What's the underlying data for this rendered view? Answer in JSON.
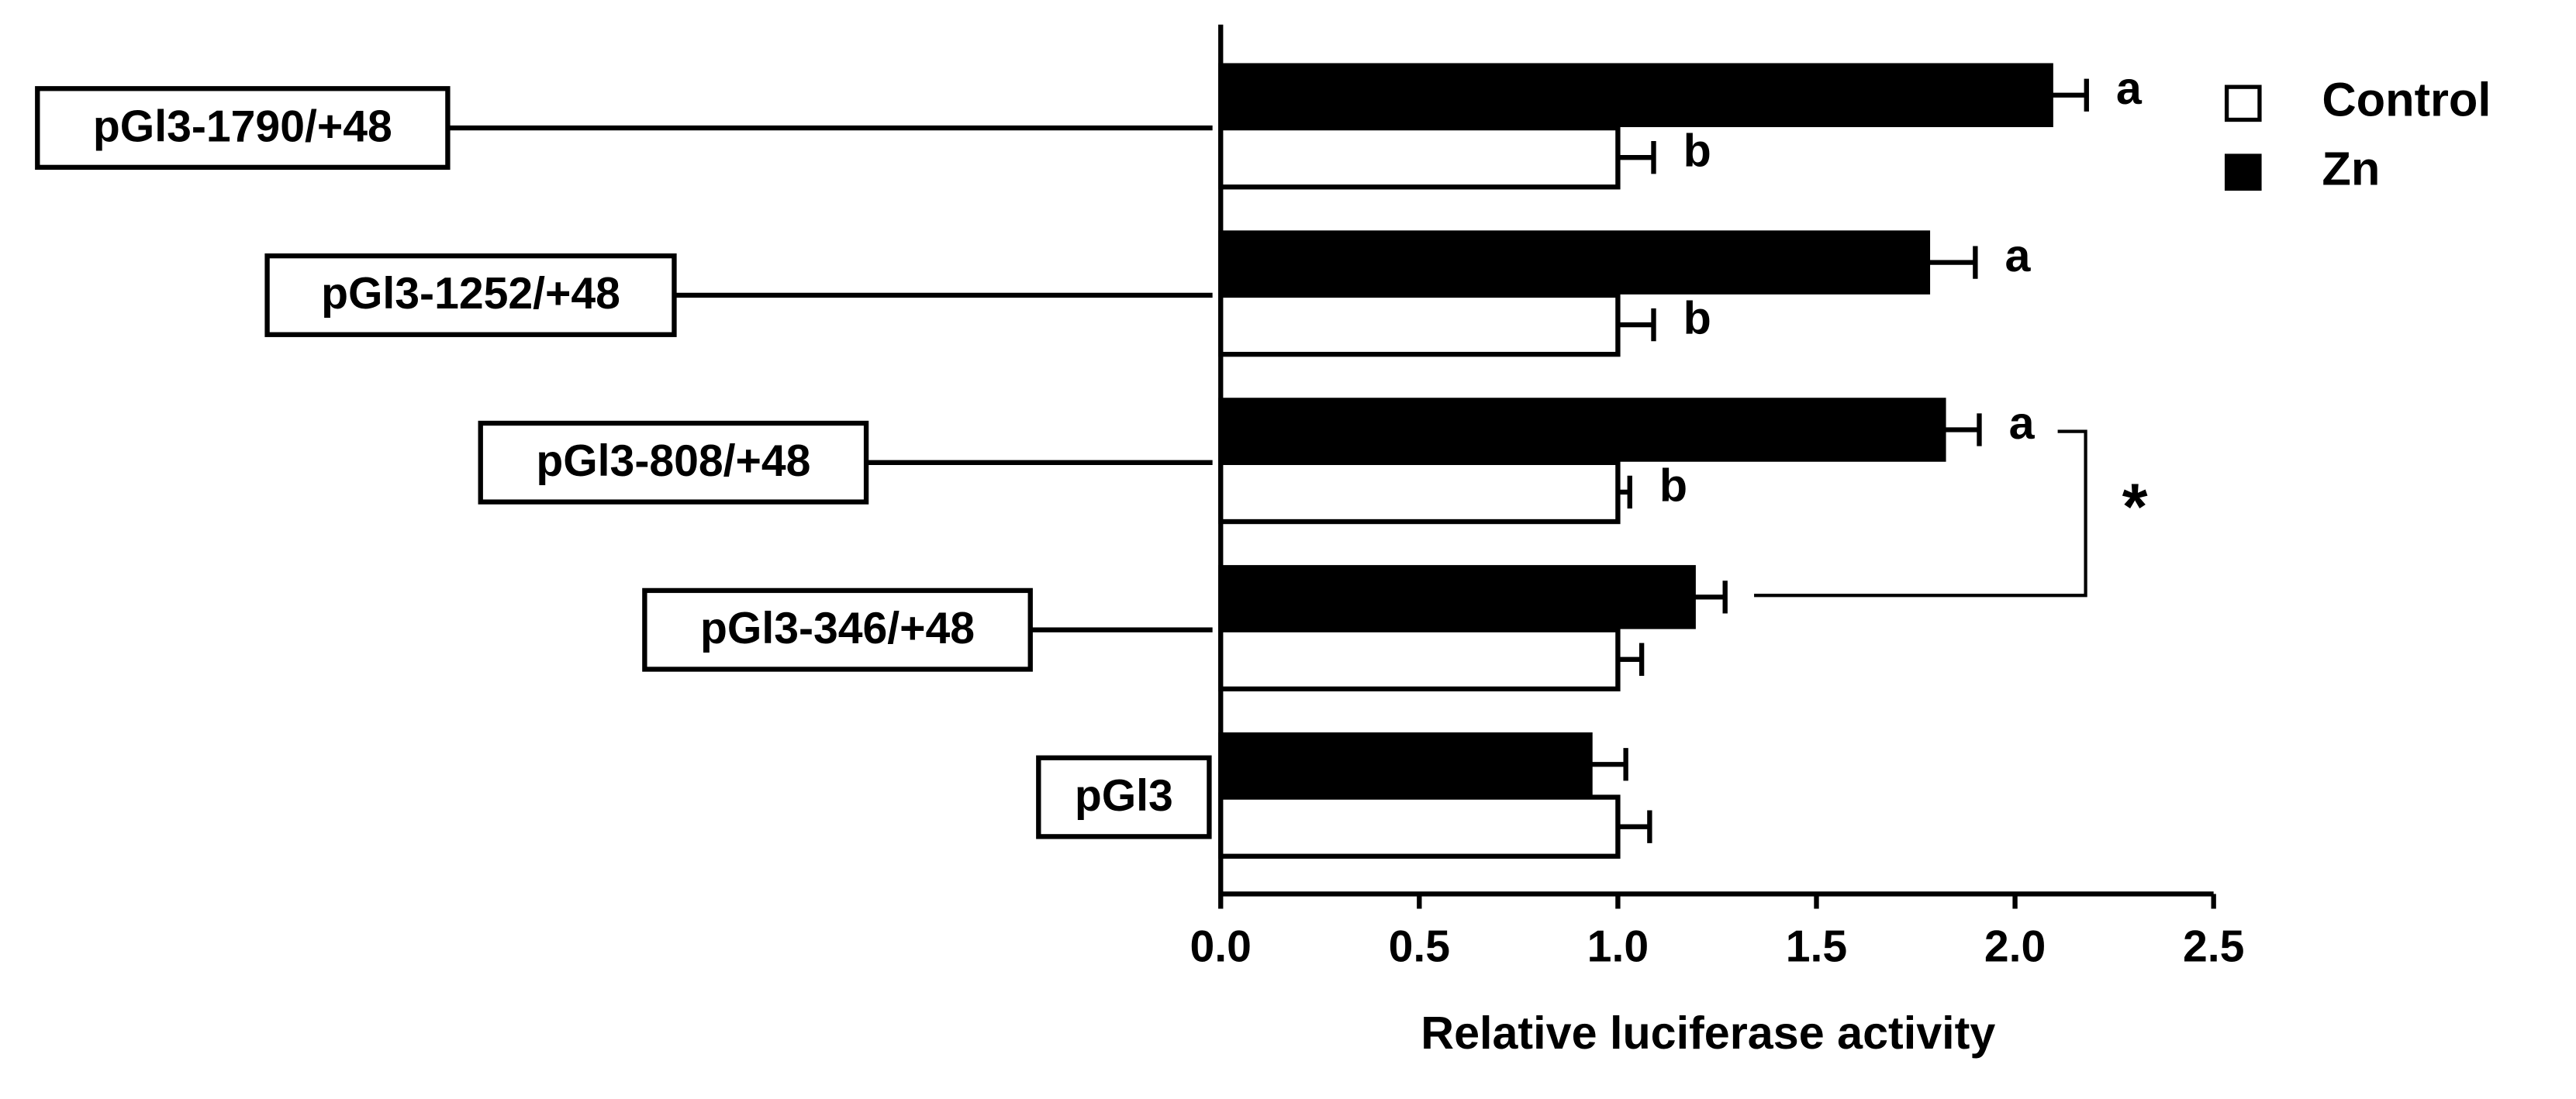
{
  "chart_data": {
    "type": "hbar",
    "xlabel": "Relative luciferase activity",
    "categories": [
      "pGl3-1790/+48",
      "pGl3-1252/+48",
      "pGl3-808/+48",
      "pGl3-346/+48",
      "pGl3"
    ],
    "series": [
      {
        "name": "Zn",
        "color": "#000000",
        "values": [
          2.09,
          1.78,
          1.82,
          1.19,
          0.93
        ],
        "errors": [
          0.09,
          0.12,
          0.09,
          0.08,
          0.09
        ],
        "letters": [
          "a",
          "a",
          "a",
          null,
          null
        ]
      },
      {
        "name": "Control",
        "color": "#ffffff",
        "values": [
          1.0,
          1.0,
          1.0,
          1.0,
          1.0
        ],
        "errors": [
          0.09,
          0.09,
          0.03,
          0.06,
          0.08
        ],
        "letters": [
          "b",
          "b",
          "b",
          null,
          null
        ]
      }
    ],
    "xlim": [
      0,
      2.5
    ],
    "xticks": [
      {
        "value": 0,
        "label": "0.0"
      },
      {
        "value": 0.5,
        "label": "0.5"
      },
      {
        "value": 1,
        "label": "1.0"
      },
      {
        "value": 1.5,
        "label": "1.5"
      },
      {
        "value": 2,
        "label": "2.0"
      },
      {
        "value": 2.5,
        "label": "2.5"
      }
    ],
    "annotation": "*"
  }
}
